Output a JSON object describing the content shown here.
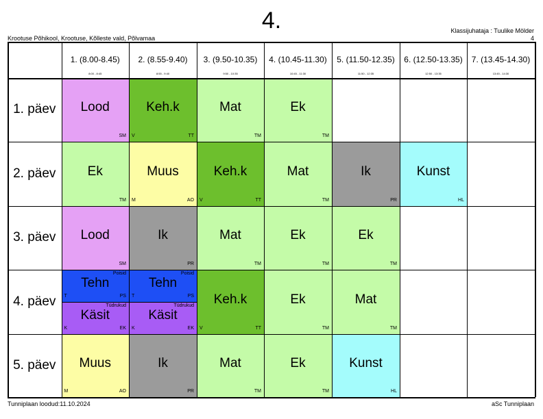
{
  "class_title": "4.",
  "school": "Krootuse Põhikool, Krootuse, Kõlleste vald, Põlvamaa",
  "head_teacher": "Klassijuhataja : Tuulike Mölder",
  "head_teacher_code": "4",
  "footer_created": "Tunniplaan loodud:11.10.2024",
  "footer_brand": "aSc Tunniplaan",
  "periods": [
    {
      "label": "1. (8.00-8.45)",
      "time": "8:00 - 8:45"
    },
    {
      "label": "2. (8.55-9.40)",
      "time": "8:55 - 9:40"
    },
    {
      "label": "3. (9.50-10.35)",
      "time": "9:50 - 10:35"
    },
    {
      "label": "4. (10.45-11.30)",
      "time": "10:45 - 11:30"
    },
    {
      "label": "5. (11.50-12.35)",
      "time": "11:50 - 12:35"
    },
    {
      "label": "6. (12.50-13.35)",
      "time": "12:50 - 13:35"
    },
    {
      "label": "7. (13.45-14.30)",
      "time": "13:45 - 14:30"
    }
  ],
  "days": [
    "1. päev",
    "2. päev",
    "3. päev",
    "4. päev",
    "5. päev"
  ],
  "colors": {
    "lood": "#e5a1f5",
    "kehk": "#6dbf2d",
    "mat_ek": "#c4fba8",
    "muus": "#fdfda5",
    "ik": "#9b9b9b",
    "kunst": "#a4fcfc",
    "tehn": "#1e4ff5",
    "kasit": "#a85cf5"
  },
  "lessons": [
    {
      "day": 0,
      "period": 0,
      "subject": "Lood",
      "room": "",
      "teacher": "SM",
      "color": "lood"
    },
    {
      "day": 0,
      "period": 1,
      "subject": "Keh.k",
      "room": "V",
      "teacher": "TT",
      "color": "kehk"
    },
    {
      "day": 0,
      "period": 2,
      "subject": "Mat",
      "room": "",
      "teacher": "TM",
      "color": "mat_ek"
    },
    {
      "day": 0,
      "period": 3,
      "subject": "Ek",
      "room": "",
      "teacher": "TM",
      "color": "mat_ek"
    },
    {
      "day": 1,
      "period": 0,
      "subject": "Ek",
      "room": "",
      "teacher": "TM",
      "color": "mat_ek"
    },
    {
      "day": 1,
      "period": 1,
      "subject": "Muus",
      "room": "M",
      "teacher": "AO",
      "color": "muus"
    },
    {
      "day": 1,
      "period": 2,
      "subject": "Keh.k",
      "room": "V",
      "teacher": "TT",
      "color": "kehk"
    },
    {
      "day": 1,
      "period": 3,
      "subject": "Mat",
      "room": "",
      "teacher": "TM",
      "color": "mat_ek"
    },
    {
      "day": 1,
      "period": 4,
      "subject": "Ik",
      "room": "",
      "teacher": "PR",
      "color": "ik"
    },
    {
      "day": 1,
      "period": 5,
      "subject": "Kunst",
      "room": "",
      "teacher": "HL",
      "color": "kunst"
    },
    {
      "day": 2,
      "period": 0,
      "subject": "Lood",
      "room": "",
      "teacher": "SM",
      "color": "lood"
    },
    {
      "day": 2,
      "period": 1,
      "subject": "Ik",
      "room": "",
      "teacher": "PR",
      "color": "ik"
    },
    {
      "day": 2,
      "period": 2,
      "subject": "Mat",
      "room": "",
      "teacher": "TM",
      "color": "mat_ek"
    },
    {
      "day": 2,
      "period": 3,
      "subject": "Ek",
      "room": "",
      "teacher": "TM",
      "color": "mat_ek"
    },
    {
      "day": 2,
      "period": 4,
      "subject": "Ek",
      "room": "",
      "teacher": "TM",
      "color": "mat_ek"
    },
    {
      "day": 3,
      "period": 0,
      "half": "top",
      "subject": "Tehn",
      "group": "Poisid",
      "room": "T",
      "teacher": "PS",
      "color": "tehn"
    },
    {
      "day": 3,
      "period": 0,
      "half": "bottom",
      "subject": "Käsit",
      "group": "Tüdrukud",
      "room": "K",
      "teacher": "EK",
      "color": "kasit"
    },
    {
      "day": 3,
      "period": 1,
      "half": "top",
      "subject": "Tehn",
      "group": "Poisid",
      "room": "T",
      "teacher": "PS",
      "color": "tehn"
    },
    {
      "day": 3,
      "period": 1,
      "half": "bottom",
      "subject": "Käsit",
      "group": "Tüdrukud",
      "room": "K",
      "teacher": "EK",
      "color": "kasit"
    },
    {
      "day": 3,
      "period": 2,
      "subject": "Keh.k",
      "room": "V",
      "teacher": "TT",
      "color": "kehk"
    },
    {
      "day": 3,
      "period": 3,
      "subject": "Ek",
      "room": "",
      "teacher": "TM",
      "color": "mat_ek"
    },
    {
      "day": 3,
      "period": 4,
      "subject": "Mat",
      "room": "",
      "teacher": "TM",
      "color": "mat_ek"
    },
    {
      "day": 4,
      "period": 0,
      "subject": "Muus",
      "room": "M",
      "teacher": "AO",
      "color": "muus"
    },
    {
      "day": 4,
      "period": 1,
      "subject": "Ik",
      "room": "",
      "teacher": "PR",
      "color": "ik"
    },
    {
      "day": 4,
      "period": 2,
      "subject": "Mat",
      "room": "",
      "teacher": "TM",
      "color": "mat_ek"
    },
    {
      "day": 4,
      "period": 3,
      "subject": "Ek",
      "room": "",
      "teacher": "TM",
      "color": "mat_ek"
    },
    {
      "day": 4,
      "period": 4,
      "subject": "Kunst",
      "room": "",
      "teacher": "HL",
      "color": "kunst"
    }
  ]
}
